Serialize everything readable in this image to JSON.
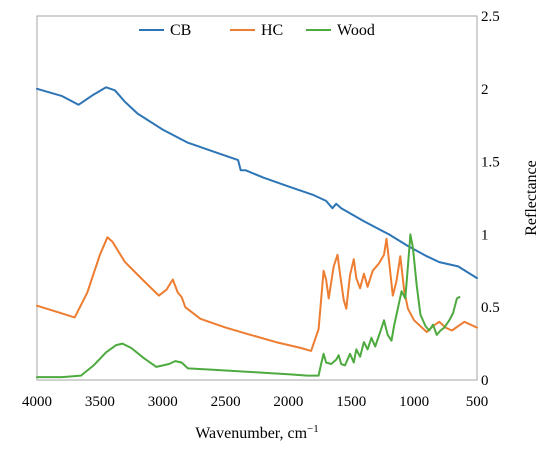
{
  "chart_data": {
    "type": "line",
    "xlabel_main": "Wavenumber, cm",
    "xlabel_sup": "−1",
    "ylabel": "Reflectance",
    "xlim": [
      4000,
      500
    ],
    "ylim": [
      0,
      2.5
    ],
    "x_reversed": true,
    "y_axis_side": "right",
    "x_ticks": [
      4000,
      3500,
      3000,
      2500,
      2000,
      1500,
      1000,
      500
    ],
    "x_tick_labels": [
      "4000",
      "3500",
      "3000",
      "2500",
      "2000",
      "1500",
      "1000",
      "500"
    ],
    "y_ticks": [
      0,
      0.5,
      1,
      1.5,
      2,
      2.5
    ],
    "y_tick_labels": [
      "0",
      "0.5",
      "1",
      "1.5",
      "2",
      "2.5"
    ],
    "legend_position": "top",
    "series": [
      {
        "name": "CB",
        "color": "#2e75b6",
        "points": [
          [
            4000,
            2.0
          ],
          [
            3800,
            1.95
          ],
          [
            3670,
            1.89
          ],
          [
            3550,
            1.96
          ],
          [
            3450,
            2.01
          ],
          [
            3380,
            1.99
          ],
          [
            3300,
            1.91
          ],
          [
            3200,
            1.83
          ],
          [
            3000,
            1.72
          ],
          [
            2800,
            1.63
          ],
          [
            2600,
            1.57
          ],
          [
            2400,
            1.51
          ],
          [
            2380,
            1.44
          ],
          [
            2340,
            1.44
          ],
          [
            2200,
            1.39
          ],
          [
            2000,
            1.33
          ],
          [
            1800,
            1.27
          ],
          [
            1700,
            1.23
          ],
          [
            1650,
            1.18
          ],
          [
            1620,
            1.21
          ],
          [
            1580,
            1.18
          ],
          [
            1400,
            1.09
          ],
          [
            1200,
            1.0
          ],
          [
            1050,
            0.92
          ],
          [
            900,
            0.85
          ],
          [
            800,
            0.81
          ],
          [
            650,
            0.78
          ],
          [
            500,
            0.7
          ]
        ]
      },
      {
        "name": "HC",
        "color": "#ed7d31",
        "points": [
          [
            4000,
            0.51
          ],
          [
            3850,
            0.47
          ],
          [
            3700,
            0.43
          ],
          [
            3600,
            0.6
          ],
          [
            3500,
            0.86
          ],
          [
            3440,
            0.98
          ],
          [
            3400,
            0.95
          ],
          [
            3300,
            0.81
          ],
          [
            3150,
            0.68
          ],
          [
            3030,
            0.58
          ],
          [
            2970,
            0.62
          ],
          [
            2920,
            0.69
          ],
          [
            2880,
            0.6
          ],
          [
            2850,
            0.57
          ],
          [
            2820,
            0.5
          ],
          [
            2700,
            0.42
          ],
          [
            2500,
            0.36
          ],
          [
            2300,
            0.31
          ],
          [
            2100,
            0.26
          ],
          [
            1900,
            0.22
          ],
          [
            1820,
            0.2
          ],
          [
            1760,
            0.35
          ],
          [
            1720,
            0.75
          ],
          [
            1700,
            0.69
          ],
          [
            1680,
            0.56
          ],
          [
            1640,
            0.78
          ],
          [
            1610,
            0.86
          ],
          [
            1590,
            0.73
          ],
          [
            1560,
            0.55
          ],
          [
            1540,
            0.49
          ],
          [
            1510,
            0.72
          ],
          [
            1480,
            0.83
          ],
          [
            1460,
            0.7
          ],
          [
            1430,
            0.63
          ],
          [
            1400,
            0.73
          ],
          [
            1370,
            0.64
          ],
          [
            1330,
            0.75
          ],
          [
            1280,
            0.8
          ],
          [
            1240,
            0.86
          ],
          [
            1220,
            0.97
          ],
          [
            1200,
            0.82
          ],
          [
            1170,
            0.58
          ],
          [
            1140,
            0.68
          ],
          [
            1110,
            0.85
          ],
          [
            1080,
            0.62
          ],
          [
            1050,
            0.49
          ],
          [
            1000,
            0.41
          ],
          [
            950,
            0.37
          ],
          [
            900,
            0.33
          ],
          [
            850,
            0.37
          ],
          [
            800,
            0.4
          ],
          [
            750,
            0.36
          ],
          [
            700,
            0.34
          ],
          [
            600,
            0.4
          ],
          [
            500,
            0.36
          ]
        ]
      },
      {
        "name": "Wood",
        "color": "#4daa3f",
        "points": [
          [
            4000,
            0.02
          ],
          [
            3800,
            0.02
          ],
          [
            3650,
            0.03
          ],
          [
            3550,
            0.1
          ],
          [
            3450,
            0.19
          ],
          [
            3370,
            0.24
          ],
          [
            3320,
            0.25
          ],
          [
            3250,
            0.22
          ],
          [
            3150,
            0.15
          ],
          [
            3050,
            0.09
          ],
          [
            2950,
            0.11
          ],
          [
            2900,
            0.13
          ],
          [
            2850,
            0.12
          ],
          [
            2800,
            0.08
          ],
          [
            2600,
            0.07
          ],
          [
            2400,
            0.06
          ],
          [
            2200,
            0.05
          ],
          [
            2000,
            0.04
          ],
          [
            1850,
            0.03
          ],
          [
            1760,
            0.03
          ],
          [
            1740,
            0.11
          ],
          [
            1720,
            0.18
          ],
          [
            1700,
            0.12
          ],
          [
            1660,
            0.11
          ],
          [
            1620,
            0.14
          ],
          [
            1600,
            0.17
          ],
          [
            1580,
            0.11
          ],
          [
            1550,
            0.1
          ],
          [
            1510,
            0.18
          ],
          [
            1480,
            0.12
          ],
          [
            1460,
            0.21
          ],
          [
            1430,
            0.16
          ],
          [
            1400,
            0.26
          ],
          [
            1370,
            0.21
          ],
          [
            1340,
            0.29
          ],
          [
            1310,
            0.23
          ],
          [
            1270,
            0.33
          ],
          [
            1240,
            0.41
          ],
          [
            1210,
            0.31
          ],
          [
            1180,
            0.27
          ],
          [
            1160,
            0.37
          ],
          [
            1130,
            0.49
          ],
          [
            1100,
            0.61
          ],
          [
            1070,
            0.56
          ],
          [
            1050,
            0.78
          ],
          [
            1030,
            1.0
          ],
          [
            1010,
            0.91
          ],
          [
            980,
            0.65
          ],
          [
            950,
            0.45
          ],
          [
            910,
            0.37
          ],
          [
            880,
            0.34
          ],
          [
            850,
            0.38
          ],
          [
            820,
            0.31
          ],
          [
            790,
            0.34
          ],
          [
            760,
            0.36
          ],
          [
            720,
            0.41
          ],
          [
            690,
            0.46
          ],
          [
            660,
            0.56
          ],
          [
            640,
            0.57
          ]
        ]
      }
    ]
  }
}
